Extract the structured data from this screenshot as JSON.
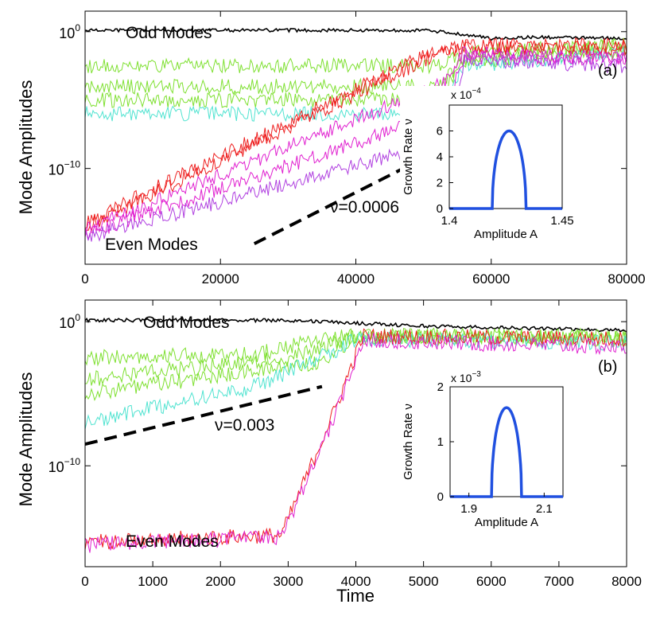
{
  "figure": {
    "xlabel": "Time",
    "ylabel": "Mode Amplitudes"
  },
  "chart_data": [
    {
      "type": "line",
      "panel": "(a)",
      "xlim": [
        0,
        80000
      ],
      "ylim_log10": [
        -17,
        1.5
      ],
      "xticks": [
        0,
        20000,
        40000,
        60000,
        80000
      ],
      "xtick_labels": [
        "0",
        "20000",
        "40000",
        "60000",
        "80000"
      ],
      "yticks": [
        {
          "value_log10": 0,
          "base": "10",
          "exp": "0"
        },
        {
          "value_log10": -10,
          "base": "10",
          "exp": "−10"
        }
      ],
      "xlabel": "",
      "ylabel": "Mode Amplitudes",
      "labels": {
        "odd": "Odd Modes",
        "even": "Even Modes",
        "rate": "ν=0.0006",
        "panel": "(a)"
      },
      "dashed_line": {
        "x": [
          25000,
          51000
        ],
        "y_log10": [
          -15.5,
          -9.0
        ]
      },
      "series": [
        {
          "name": "Odd modes (dominant)",
          "color": "#000000",
          "segments": [
            {
              "x": [
                0,
                40000,
                50000,
                56000,
                60000,
                66000,
                80000
              ],
              "y_log10": [
                0.1,
                0.1,
                0.1,
                -0.2,
                -0.5,
                -0.4,
                -0.5
              ]
            }
          ]
        },
        {
          "name": "Odd modes (green)",
          "color": "#7ee030",
          "segments": [
            {
              "x": [
                0,
                52000,
                56000,
                80000
              ],
              "y_log10": [
                -2.5,
                -2.5,
                -1.5,
                -1.0
              ]
            },
            {
              "x": [
                0,
                52000,
                56000,
                80000
              ],
              "y_log10": [
                -4.0,
                -4.0,
                -2.0,
                -1.0
              ]
            },
            {
              "x": [
                0,
                52000,
                56000,
                80000
              ],
              "y_log10": [
                -5.0,
                -5.0,
                -2.2,
                -1.5
              ]
            }
          ]
        },
        {
          "name": "Odd modes (cyan)",
          "color": "#4fe3d0",
          "segments": [
            {
              "x": [
                0,
                52000,
                56000,
                80000
              ],
              "y_log10": [
                -6.0,
                -6.0,
                -2.5,
                -1.5
              ]
            }
          ]
        },
        {
          "name": "Even modes (red)",
          "color": "#ee2020",
          "segments": [
            {
              "x": [
                0,
                52000,
                56000,
                80000
              ],
              "y_log10": [
                -14.0,
                -1.3,
                -1.0,
                -1.0
              ]
            },
            {
              "x": [
                0,
                52000,
                56000,
                80000
              ],
              "y_log10": [
                -14.3,
                -1.6,
                -1.2,
                -1.2
              ]
            }
          ]
        },
        {
          "name": "Even modes (magenta)",
          "color": "#e020d0",
          "segments": [
            {
              "x": [
                0,
                53000,
                56000,
                80000
              ],
              "y_log10": [
                -14.5,
                -3.8,
                -1.5,
                -2.0
              ]
            },
            {
              "x": [
                0,
                53000,
                56000,
                80000
              ],
              "y_log10": [
                -14.8,
                -6.0,
                -1.8,
                -2.0
              ]
            }
          ]
        },
        {
          "name": "Even modes (purple)",
          "color": "#b040e0",
          "segments": [
            {
              "x": [
                0,
                54000,
                56000,
                80000
              ],
              "y_log10": [
                -15.0,
                -8.0,
                -2.0,
                -2.5
              ]
            }
          ]
        }
      ],
      "inset": {
        "xlabel": "Amplitude   A",
        "ylabel": "Growth Rate  ν",
        "scale_text": "x 10",
        "scale_exp": "−4",
        "xlim": [
          1.4,
          1.45
        ],
        "ylim": [
          0,
          8
        ],
        "xticks": [
          1.4,
          1.45
        ],
        "xtick_labels": [
          "1.4",
          "1.45"
        ],
        "yticks": [
          0,
          2,
          4,
          6
        ],
        "ytick_labels": [
          "0",
          "2",
          "4",
          "6"
        ],
        "curve": {
          "x_range": [
            1.419,
            1.434
          ],
          "peak": 6.0
        },
        "color": "#2050e0"
      }
    },
    {
      "type": "line",
      "panel": "(b)",
      "xlim": [
        0,
        8000
      ],
      "ylim_log10": [
        -17,
        1.5
      ],
      "xticks": [
        0,
        1000,
        2000,
        3000,
        4000,
        5000,
        6000,
        7000,
        8000
      ],
      "xtick_labels": [
        "0",
        "1000",
        "2000",
        "3000",
        "4000",
        "5000",
        "6000",
        "7000",
        "8000"
      ],
      "yticks": [
        {
          "value_log10": 0,
          "base": "10",
          "exp": "0"
        },
        {
          "value_log10": -10,
          "base": "10",
          "exp": "−10"
        }
      ],
      "xlabel": "Time",
      "ylabel": "Mode Amplitudes",
      "labels": {
        "odd": "Odd Modes",
        "even": "Even Modes",
        "rate": "ν=0.003",
        "panel": "(b)"
      },
      "dashed_line": {
        "x": [
          0,
          3500
        ],
        "y_log10": [
          -8.5,
          -4.5
        ]
      },
      "series": [
        {
          "name": "Odd modes (dominant)",
          "color": "#000000",
          "segments": [
            {
              "x": [
                0,
                3000,
                4000,
                5000,
                8000
              ],
              "y_log10": [
                0.1,
                0.1,
                -0.1,
                -0.3,
                -0.6
              ]
            }
          ]
        },
        {
          "name": "Odd modes (green)",
          "color": "#7ee030",
          "segments": [
            {
              "x": [
                0,
                2500,
                3500,
                4000,
                8000
              ],
              "y_log10": [
                -2.5,
                -2.3,
                -1.2,
                -1.0,
                -1.0
              ]
            },
            {
              "x": [
                0,
                3000,
                4000,
                8000
              ],
              "y_log10": [
                -4.0,
                -2.5,
                -1.0,
                -1.2
              ]
            },
            {
              "x": [
                0,
                3500,
                4000,
                8000
              ],
              "y_log10": [
                -5.0,
                -2.8,
                -1.0,
                -1.2
              ]
            }
          ]
        },
        {
          "name": "Odd modes (cyan)",
          "color": "#4fe3d0",
          "segments": [
            {
              "x": [
                0,
                2500,
                3700,
                4000,
                8000
              ],
              "y_log10": [
                -7.0,
                -4.5,
                -2.0,
                -1.2,
                -1.5
              ]
            }
          ]
        },
        {
          "name": "Even modes (red)",
          "color": "#ee2020",
          "segments": [
            {
              "x": [
                0,
                2900,
                3700,
                4100,
                8000
              ],
              "y_log10": [
                -15.3,
                -14.8,
                -6.0,
                -1.0,
                -1.2
              ]
            }
          ]
        },
        {
          "name": "Even modes (magenta)",
          "color": "#e020d0",
          "segments": [
            {
              "x": [
                0,
                2900,
                3700,
                4100,
                8000
              ],
              "y_log10": [
                -15.5,
                -15.0,
                -6.5,
                -1.3,
                -1.8
              ]
            }
          ]
        }
      ],
      "inset": {
        "xlabel": "Amplitude   A",
        "ylabel": "Growth Rate  ν",
        "scale_text": "x 10",
        "scale_exp": "−3",
        "xlim": [
          1.85,
          2.15
        ],
        "ylim": [
          0,
          2
        ],
        "xticks": [
          1.9,
          2.1
        ],
        "xtick_labels": [
          "1.9",
          "2.1"
        ],
        "yticks": [
          0,
          1,
          2
        ],
        "ytick_labels": [
          "0",
          "1",
          "2"
        ],
        "curve": {
          "x_range": [
            1.96,
            2.04
          ],
          "peak": 1.62
        },
        "color": "#2050e0"
      }
    }
  ]
}
